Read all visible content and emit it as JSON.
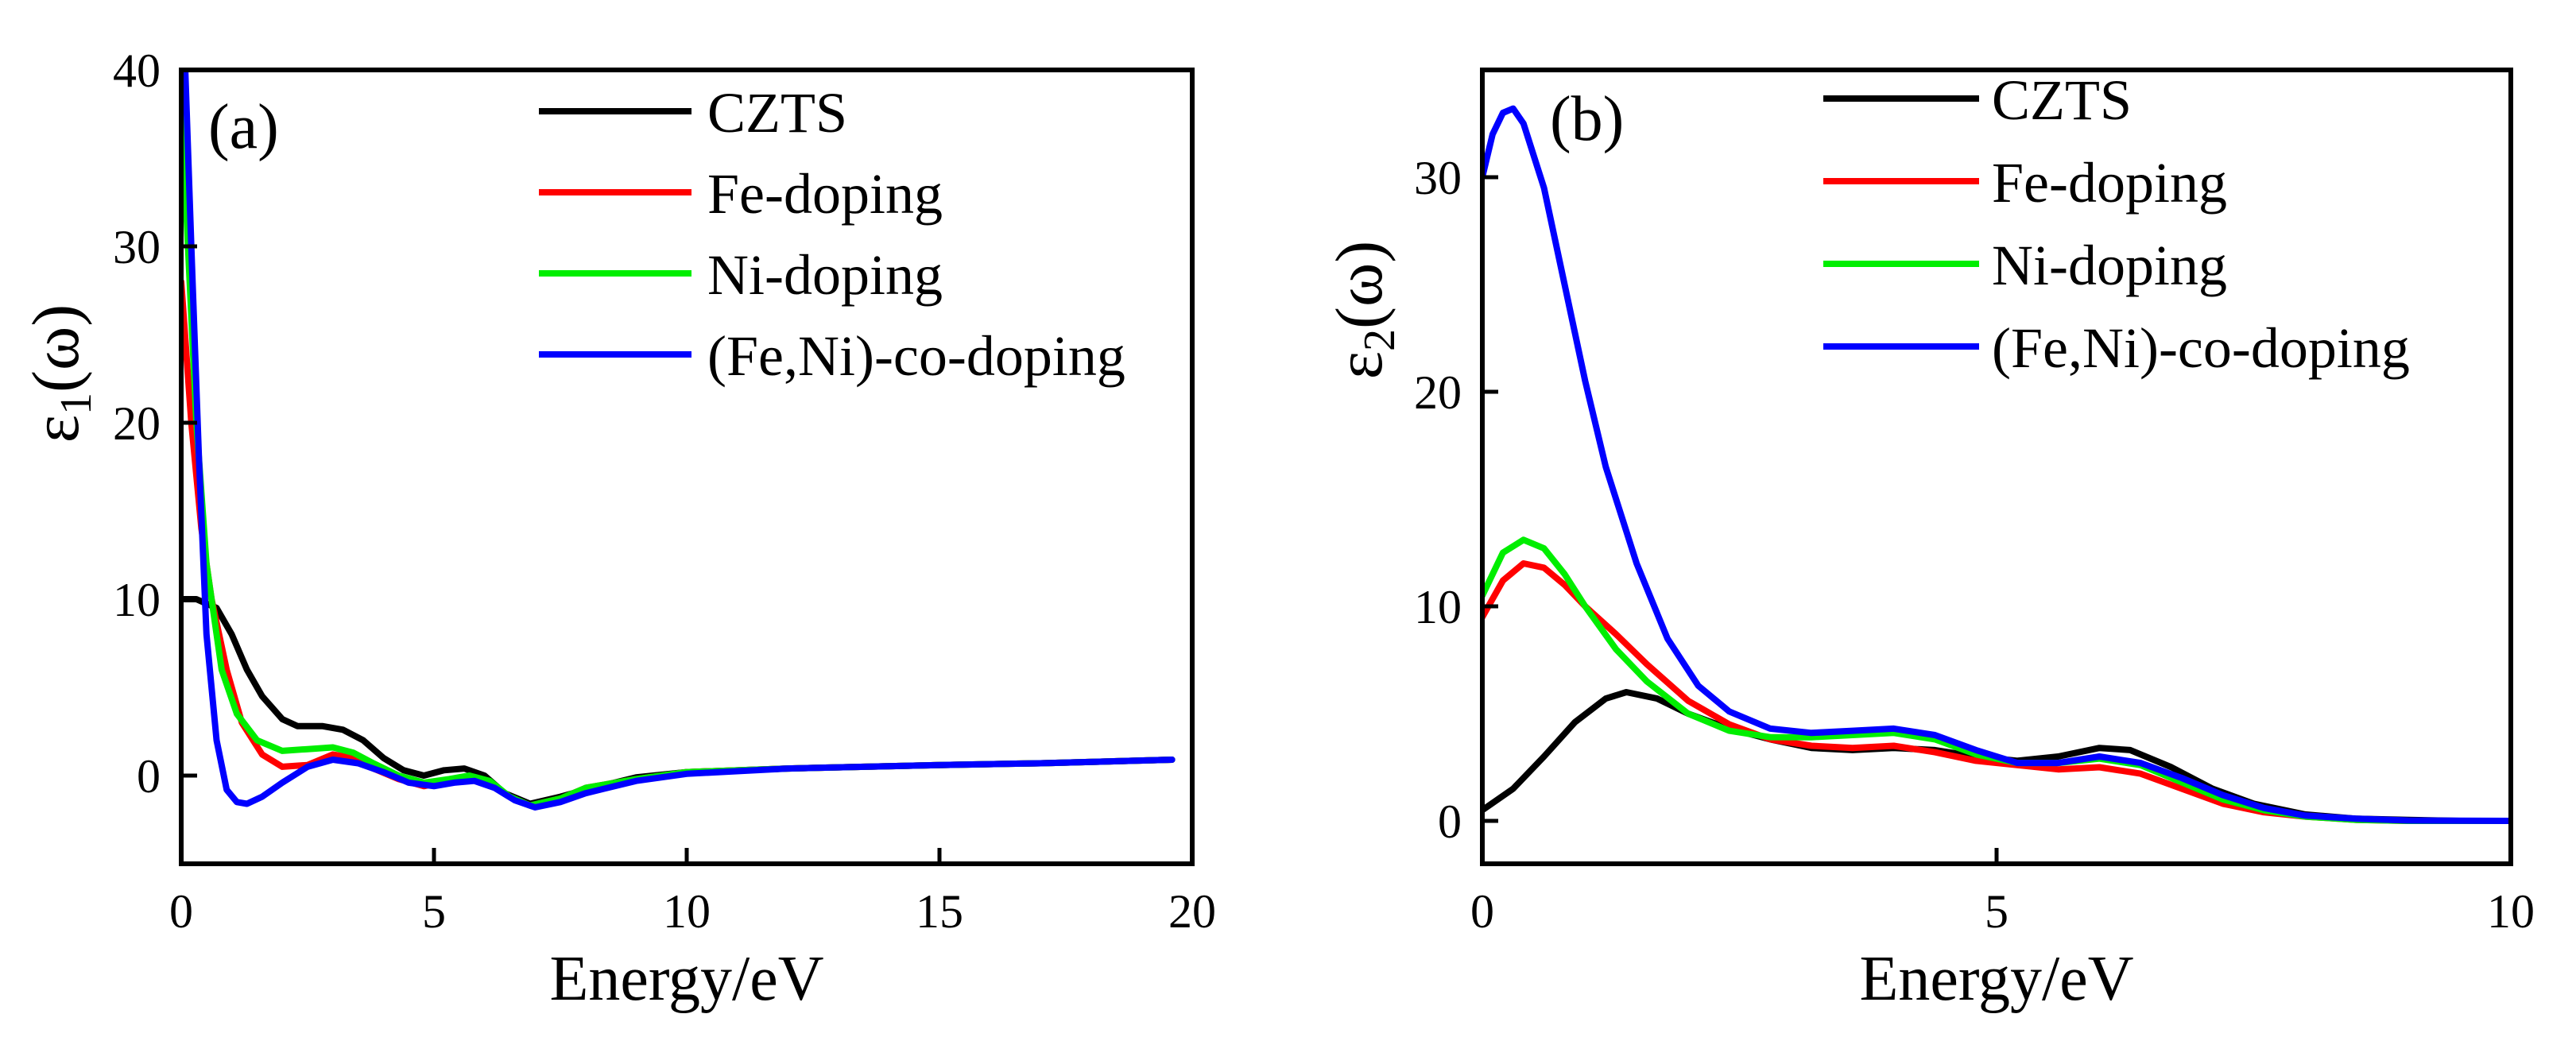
{
  "chart_data": [
    {
      "type": "line",
      "panel_label": "(a)",
      "xlabel": "Energy/eV",
      "ylabel": {
        "symbol": "ε",
        "subscript": "1",
        "suffix": "(ω)"
      },
      "xlim": [
        0,
        20
      ],
      "ylim": [
        -5,
        40
      ],
      "xticks": [
        0,
        5,
        10,
        15,
        20
      ],
      "yticks": [
        0,
        10,
        20,
        30,
        40
      ],
      "grid": false,
      "legend_position": "top-right",
      "series": [
        {
          "name": "CZTS",
          "color": "#000000",
          "x": [
            0,
            0.3,
            0.7,
            1.0,
            1.3,
            1.6,
            2.0,
            2.3,
            2.8,
            3.2,
            3.6,
            4.0,
            4.4,
            4.8,
            5.2,
            5.6,
            6.0,
            6.4,
            6.9,
            7.5,
            8.0,
            9.0,
            10.0,
            12.0,
            15.0,
            17.0,
            19.6
          ],
          "y": [
            10.0,
            10.0,
            9.5,
            8.0,
            6.0,
            4.5,
            3.2,
            2.8,
            2.8,
            2.6,
            2.0,
            1.0,
            0.3,
            0.0,
            0.3,
            0.4,
            0.0,
            -1.0,
            -1.6,
            -1.2,
            -0.8,
            -0.1,
            0.2,
            0.4,
            0.6,
            0.7,
            0.9
          ]
        },
        {
          "name": "Fe-doping",
          "color": "#ff0000",
          "x": [
            0,
            0.2,
            0.4,
            0.6,
            0.9,
            1.2,
            1.6,
            2.0,
            2.5,
            3.0,
            3.4,
            3.8,
            4.3,
            4.8,
            5.3,
            5.7,
            6.1,
            6.5,
            6.9,
            7.5,
            8.0,
            9.0,
            10.0,
            12.0,
            15.0,
            17.0,
            19.6
          ],
          "y": [
            28.0,
            20.0,
            14.0,
            10.0,
            6.0,
            3.0,
            1.2,
            0.5,
            0.6,
            1.2,
            1.0,
            0.4,
            -0.2,
            -0.6,
            -0.3,
            -0.1,
            -0.4,
            -1.2,
            -1.7,
            -1.3,
            -0.7,
            -0.2,
            0.2,
            0.4,
            0.6,
            0.7,
            0.9
          ]
        },
        {
          "name": "Ni-doping",
          "color": "#00ee00",
          "x": [
            0,
            0.1,
            0.3,
            0.5,
            0.8,
            1.1,
            1.5,
            2.0,
            2.5,
            3.0,
            3.4,
            3.8,
            4.3,
            4.8,
            5.3,
            5.7,
            6.1,
            6.5,
            6.9,
            7.5,
            8.0,
            9.0,
            10.0,
            12.0,
            15.0,
            17.0,
            19.6
          ],
          "y": [
            40.0,
            32.0,
            20.0,
            12.0,
            6.0,
            3.5,
            2.0,
            1.4,
            1.5,
            1.6,
            1.3,
            0.7,
            0.0,
            -0.4,
            -0.2,
            0.0,
            -0.3,
            -1.2,
            -1.7,
            -1.3,
            -0.7,
            -0.2,
            0.2,
            0.4,
            0.6,
            0.7,
            0.9
          ]
        },
        {
          "name": "(Fe,Ni)-co-doping",
          "color": "#0000ff",
          "x": [
            0.08,
            0.2,
            0.35,
            0.5,
            0.7,
            0.9,
            1.1,
            1.3,
            1.6,
            2.0,
            2.5,
            3.0,
            3.5,
            4.0,
            4.5,
            5.0,
            5.4,
            5.8,
            6.2,
            6.6,
            7.0,
            7.5,
            8.0,
            9.0,
            10.0,
            12.0,
            15.0,
            17.0,
            19.6
          ],
          "y": [
            40.0,
            30.0,
            18.0,
            8.0,
            2.0,
            -0.8,
            -1.5,
            -1.6,
            -1.2,
            -0.4,
            0.5,
            0.9,
            0.7,
            0.2,
            -0.4,
            -0.6,
            -0.4,
            -0.3,
            -0.7,
            -1.4,
            -1.8,
            -1.5,
            -1.0,
            -0.3,
            0.1,
            0.4,
            0.6,
            0.7,
            0.9
          ]
        }
      ]
    },
    {
      "type": "line",
      "panel_label": "(b)",
      "xlabel": "Energy/eV",
      "ylabel": {
        "symbol": "ε",
        "subscript": "2",
        "suffix": "(ω)"
      },
      "xlim": [
        0,
        10
      ],
      "ylim": [
        -2,
        35
      ],
      "xticks": [
        0,
        5,
        10
      ],
      "yticks": [
        0,
        10,
        20,
        30
      ],
      "grid": false,
      "legend_position": "top-right",
      "series": [
        {
          "name": "CZTS",
          "color": "#000000",
          "x": [
            0,
            0.3,
            0.6,
            0.9,
            1.2,
            1.4,
            1.7,
            2.0,
            2.4,
            2.8,
            3.2,
            3.6,
            4.0,
            4.4,
            4.8,
            5.2,
            5.6,
            6.0,
            6.3,
            6.7,
            7.1,
            7.5,
            8.0,
            8.5,
            9.0,
            9.5,
            10.0
          ],
          "y": [
            0.5,
            1.5,
            3.0,
            4.6,
            5.7,
            6.0,
            5.7,
            5.0,
            4.3,
            3.8,
            3.4,
            3.3,
            3.4,
            3.3,
            3.0,
            2.8,
            3.0,
            3.4,
            3.3,
            2.5,
            1.5,
            0.8,
            0.3,
            0.1,
            0.05,
            0.0,
            0.0
          ]
        },
        {
          "name": "Fe-doping",
          "color": "#ff0000",
          "x": [
            0,
            0.2,
            0.4,
            0.6,
            0.8,
            1.0,
            1.3,
            1.6,
            2.0,
            2.4,
            2.8,
            3.2,
            3.6,
            4.0,
            4.4,
            4.8,
            5.2,
            5.6,
            6.0,
            6.4,
            6.8,
            7.2,
            7.6,
            8.0,
            8.5,
            9.0,
            10.0
          ],
          "y": [
            9.5,
            11.2,
            12.0,
            11.8,
            11.0,
            10.0,
            8.7,
            7.3,
            5.6,
            4.5,
            3.8,
            3.5,
            3.4,
            3.5,
            3.2,
            2.8,
            2.6,
            2.4,
            2.5,
            2.2,
            1.5,
            0.8,
            0.4,
            0.2,
            0.05,
            0.0,
            0.0
          ]
        },
        {
          "name": "Ni-doping",
          "color": "#00ee00",
          "x": [
            0,
            0.2,
            0.4,
            0.6,
            0.8,
            1.0,
            1.3,
            1.6,
            2.0,
            2.4,
            2.8,
            3.2,
            3.6,
            4.0,
            4.4,
            4.8,
            5.2,
            5.6,
            6.0,
            6.4,
            6.8,
            7.2,
            7.6,
            8.0,
            8.5,
            9.0,
            10.0
          ],
          "y": [
            10.5,
            12.5,
            13.1,
            12.7,
            11.5,
            10.0,
            8.0,
            6.5,
            5.0,
            4.2,
            3.9,
            3.9,
            4.0,
            4.1,
            3.8,
            3.1,
            2.7,
            2.7,
            2.9,
            2.6,
            1.8,
            1.0,
            0.5,
            0.2,
            0.05,
            0.0,
            0.0
          ]
        },
        {
          "name": "(Fe,Ni)-co-doping",
          "color": "#0000ff",
          "x": [
            0,
            0.1,
            0.2,
            0.3,
            0.4,
            0.6,
            0.8,
            1.0,
            1.2,
            1.5,
            1.8,
            2.1,
            2.4,
            2.8,
            3.2,
            3.6,
            4.0,
            4.4,
            4.8,
            5.2,
            5.6,
            6.0,
            6.4,
            6.8,
            7.2,
            7.6,
            8.0,
            8.5,
            9.0,
            10.0
          ],
          "y": [
            30.0,
            32.0,
            33.0,
            33.2,
            32.5,
            29.5,
            25.0,
            20.5,
            16.5,
            12.0,
            8.5,
            6.3,
            5.1,
            4.3,
            4.1,
            4.2,
            4.3,
            4.0,
            3.3,
            2.7,
            2.7,
            3.0,
            2.7,
            2.0,
            1.2,
            0.6,
            0.25,
            0.1,
            0.02,
            0.0
          ]
        }
      ]
    }
  ]
}
